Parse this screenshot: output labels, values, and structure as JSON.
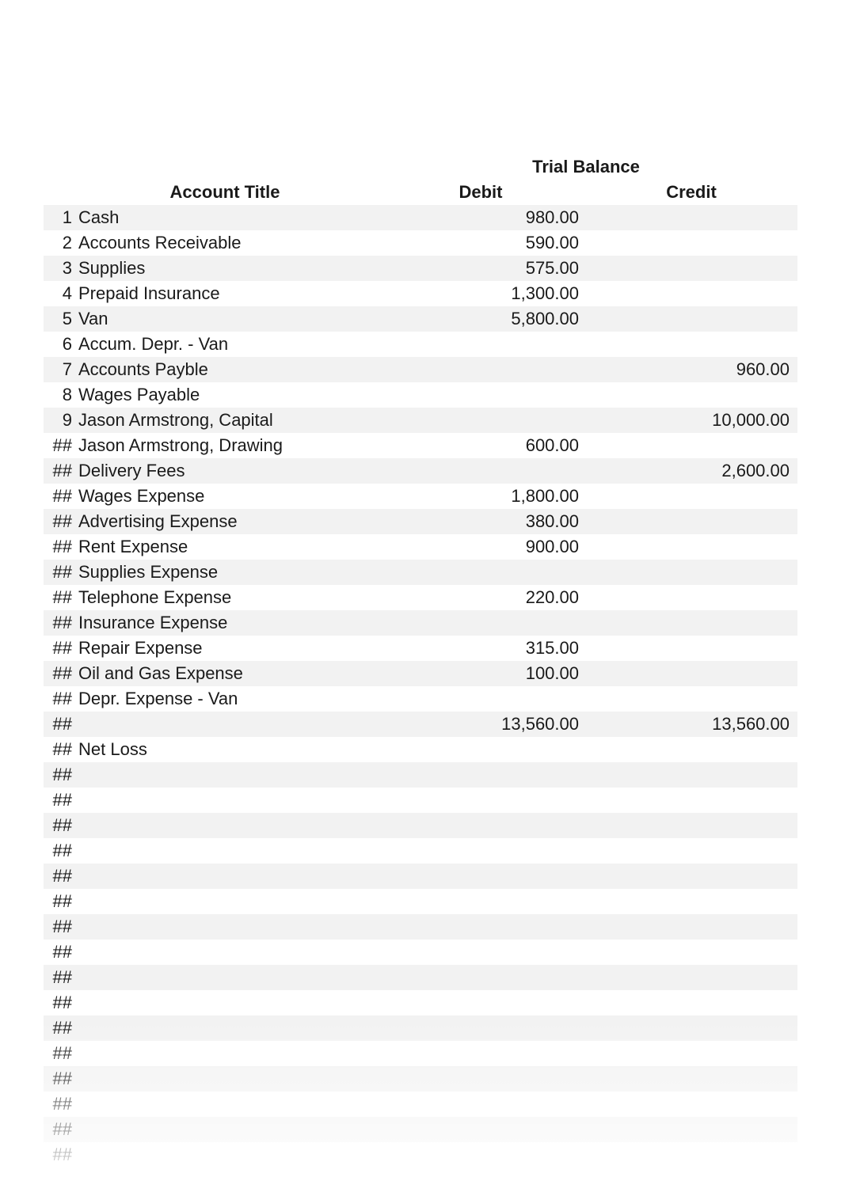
{
  "headers": {
    "span_label": "Trial Balance",
    "account_title": "Account Title",
    "debit": "Debit",
    "credit": "Credit"
  },
  "colors": {
    "row_alt": "#f2f2f2",
    "row_base": "#ffffff",
    "text": "#1a1a1a"
  },
  "rows": [
    {
      "n": "1",
      "title": "Cash",
      "debit": "980.00",
      "credit": ""
    },
    {
      "n": "2",
      "title": "Accounts Receivable",
      "debit": "590.00",
      "credit": ""
    },
    {
      "n": "3",
      "title": "Supplies",
      "debit": "575.00",
      "credit": ""
    },
    {
      "n": "4",
      "title": "Prepaid Insurance",
      "debit": "1,300.00",
      "credit": ""
    },
    {
      "n": "5",
      "title": "Van",
      "debit": "5,800.00",
      "credit": ""
    },
    {
      "n": "6",
      "title": "Accum. Depr. - Van",
      "debit": "",
      "credit": ""
    },
    {
      "n": "7",
      "title": "Accounts Payble",
      "debit": "",
      "credit": "960.00"
    },
    {
      "n": "8",
      "title": "Wages Payable",
      "debit": "",
      "credit": ""
    },
    {
      "n": "9",
      "title": "Jason Armstrong, Capital",
      "debit": "",
      "credit": "10,000.00"
    },
    {
      "n": "##",
      "title": "Jason Armstrong, Drawing",
      "debit": "600.00",
      "credit": ""
    },
    {
      "n": "##",
      "title": "Delivery Fees",
      "debit": "",
      "credit": "2,600.00"
    },
    {
      "n": "##",
      "title": "Wages Expense",
      "debit": "1,800.00",
      "credit": ""
    },
    {
      "n": "##",
      "title": "Advertising Expense",
      "debit": "380.00",
      "credit": ""
    },
    {
      "n": "##",
      "title": "Rent Expense",
      "debit": "900.00",
      "credit": ""
    },
    {
      "n": "##",
      "title": "Supplies Expense",
      "debit": "",
      "credit": ""
    },
    {
      "n": "##",
      "title": "Telephone Expense",
      "debit": "220.00",
      "credit": ""
    },
    {
      "n": "##",
      "title": "Insurance Expense",
      "debit": "",
      "credit": ""
    },
    {
      "n": "##",
      "title": "Repair Expense",
      "debit": "315.00",
      "credit": ""
    },
    {
      "n": "##",
      "title": "Oil and Gas Expense",
      "debit": "100.00",
      "credit": ""
    },
    {
      "n": "##",
      "title": "Depr. Expense - Van",
      "debit": "",
      "credit": ""
    },
    {
      "n": "##",
      "title": "",
      "debit": "13,560.00",
      "credit": "13,560.00"
    },
    {
      "n": "##",
      "title": "Net Loss",
      "debit": "",
      "credit": ""
    },
    {
      "n": "##",
      "title": "",
      "debit": "",
      "credit": ""
    },
    {
      "n": "##",
      "title": "",
      "debit": "",
      "credit": ""
    },
    {
      "n": "##",
      "title": "",
      "debit": "",
      "credit": ""
    },
    {
      "n": "##",
      "title": "",
      "debit": "",
      "credit": ""
    },
    {
      "n": "##",
      "title": "",
      "debit": "",
      "credit": ""
    },
    {
      "n": "##",
      "title": "",
      "debit": "",
      "credit": ""
    },
    {
      "n": "##",
      "title": "",
      "debit": "",
      "credit": ""
    },
    {
      "n": "##",
      "title": "",
      "debit": "",
      "credit": ""
    },
    {
      "n": "##",
      "title": "",
      "debit": "",
      "credit": ""
    },
    {
      "n": "##",
      "title": "",
      "debit": "",
      "credit": ""
    },
    {
      "n": "##",
      "title": "",
      "debit": "",
      "credit": ""
    },
    {
      "n": "##",
      "title": "",
      "debit": "",
      "credit": ""
    },
    {
      "n": "##",
      "title": "",
      "debit": "",
      "credit": ""
    },
    {
      "n": "##",
      "title": "",
      "debit": "",
      "credit": ""
    },
    {
      "n": "##",
      "title": "",
      "debit": "",
      "credit": ""
    },
    {
      "n": "##",
      "title": "",
      "debit": "",
      "credit": ""
    }
  ]
}
